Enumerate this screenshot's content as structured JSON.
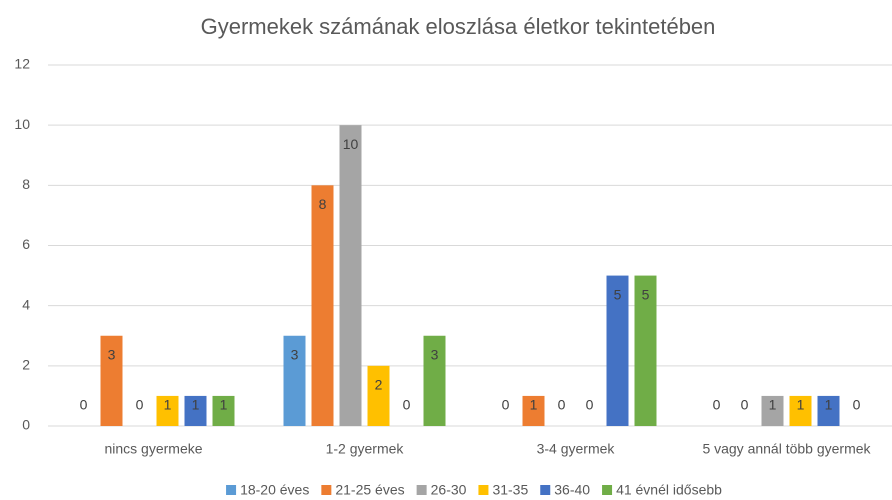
{
  "chart_data": {
    "type": "bar",
    "title": "Gyermekek számának eloszlása életkor tekintetében",
    "categories": [
      "nincs gyermeke",
      "1-2 gyermek",
      "3-4 gyermek",
      "5 vagy annál több gyermek"
    ],
    "series": [
      {
        "name": "18-20 éves",
        "color": "#5b9bd5",
        "values": [
          0,
          3,
          0,
          0
        ]
      },
      {
        "name": "21-25 éves",
        "color": "#ed7d31",
        "values": [
          3,
          8,
          1,
          0
        ]
      },
      {
        "name": "26-30",
        "color": "#a5a5a5",
        "values": [
          0,
          10,
          0,
          1
        ]
      },
      {
        "name": "31-35",
        "color": "#ffc000",
        "values": [
          1,
          2,
          0,
          1
        ]
      },
      {
        "name": "36-40",
        "color": "#4472c4",
        "values": [
          1,
          0,
          5,
          1
        ]
      },
      {
        "name": "41 évnél idősebb",
        "color": "#70ad47",
        "values": [
          1,
          3,
          5,
          0
        ]
      }
    ],
    "ylim": [
      0,
      12
    ],
    "yticks": [
      0,
      2,
      4,
      6,
      8,
      10,
      12
    ],
    "grid": true,
    "legend": "bottom"
  }
}
